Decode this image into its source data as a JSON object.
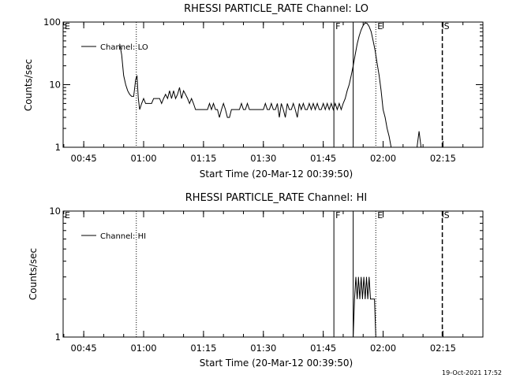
{
  "footer_timestamp": "19-Oct-2021 17:52",
  "chart_data": [
    {
      "type": "line",
      "title": "RHESSI PARTICLE_RATE Channel: LO",
      "xlabel": "Start Time (20-Mar-12 00:39:50)",
      "ylabel": "Counts/sec",
      "yscale": "log",
      "xlim": [
        "00:39:50",
        "02:25:00"
      ],
      "ylim": [
        1,
        100
      ],
      "x_ticks": [
        "00:45",
        "01:00",
        "01:15",
        "01:30",
        "01:45",
        "02:00",
        "02:15"
      ],
      "y_ticks": [
        "1",
        "10",
        "100"
      ],
      "legend": {
        "label": "Channel: LO",
        "position": "top-left"
      },
      "markers": [
        {
          "label": "E",
          "time": "00:39:50",
          "style": "none"
        },
        {
          "label": "",
          "time": "00:58:10",
          "style": "dotted"
        },
        {
          "label": "F",
          "time": "01:47:40",
          "style": "solid"
        },
        {
          "label": "",
          "time": "01:52:30",
          "style": "solid"
        },
        {
          "label": "E",
          "time": "01:58:10",
          "style": "dotted"
        },
        {
          "label": "S",
          "time": "02:14:50",
          "style": "dashed"
        }
      ],
      "series": [
        {
          "values": [
            [
              "00:54:00",
              45
            ],
            [
              "00:54:30",
              30
            ],
            [
              "00:55:00",
              14
            ],
            [
              "00:55:30",
              10
            ],
            [
              "00:56:00",
              8
            ],
            [
              "00:56:30",
              7
            ],
            [
              "00:57:00",
              6.5
            ],
            [
              "00:57:30",
              6.5
            ],
            [
              "00:58:00",
              12
            ],
            [
              "00:58:20",
              14
            ],
            [
              "00:58:40",
              6
            ],
            [
              "00:59:00",
              4
            ],
            [
              "00:59:30",
              5
            ],
            [
              "01:00:00",
              6
            ],
            [
              "01:00:30",
              5
            ],
            [
              "01:01:00",
              5
            ],
            [
              "01:02:00",
              5
            ],
            [
              "01:02:30",
              6
            ],
            [
              "01:03:30",
              6
            ],
            [
              "01:04:00",
              6
            ],
            [
              "01:04:30",
              5
            ],
            [
              "01:05:00",
              6
            ],
            [
              "01:05:30",
              7
            ],
            [
              "01:06:00",
              6
            ],
            [
              "01:06:30",
              8
            ],
            [
              "01:07:00",
              6
            ],
            [
              "01:07:30",
              8
            ],
            [
              "01:08:00",
              6
            ],
            [
              "01:08:30",
              7
            ],
            [
              "01:09:00",
              9
            ],
            [
              "01:09:30",
              6
            ],
            [
              "01:10:00",
              8
            ],
            [
              "01:10:30",
              7
            ],
            [
              "01:11:00",
              6
            ],
            [
              "01:11:30",
              5
            ],
            [
              "01:12:00",
              6
            ],
            [
              "01:12:30",
              5
            ],
            [
              "01:13:00",
              4
            ],
            [
              "01:13:30",
              4
            ],
            [
              "01:14:00",
              4
            ],
            [
              "01:14:30",
              4
            ],
            [
              "01:15:00",
              4
            ],
            [
              "01:16:00",
              4
            ],
            [
              "01:16:30",
              5
            ],
            [
              "01:17:00",
              4
            ],
            [
              "01:17:30",
              5
            ],
            [
              "01:18:00",
              4
            ],
            [
              "01:18:30",
              4
            ],
            [
              "01:19:00",
              3
            ],
            [
              "01:19:30",
              4
            ],
            [
              "01:20:00",
              5
            ],
            [
              "01:20:30",
              4
            ],
            [
              "01:21:00",
              3
            ],
            [
              "01:21:30",
              3
            ],
            [
              "01:22:00",
              4
            ],
            [
              "01:23:00",
              4
            ],
            [
              "01:24:00",
              4
            ],
            [
              "01:24:30",
              5
            ],
            [
              "01:25:00",
              4
            ],
            [
              "01:25:30",
              4
            ],
            [
              "01:26:00",
              5
            ],
            [
              "01:26:30",
              4
            ],
            [
              "01:27:00",
              4
            ],
            [
              "01:28:00",
              4
            ],
            [
              "01:29:00",
              4
            ],
            [
              "01:30:00",
              4
            ],
            [
              "01:30:30",
              5
            ],
            [
              "01:31:00",
              4
            ],
            [
              "01:31:30",
              4
            ],
            [
              "01:32:00",
              5
            ],
            [
              "01:32:30",
              4
            ],
            [
              "01:33:00",
              4
            ],
            [
              "01:33:30",
              5
            ],
            [
              "01:34:00",
              3
            ],
            [
              "01:34:30",
              5
            ],
            [
              "01:35:00",
              4
            ],
            [
              "01:35:30",
              3
            ],
            [
              "01:36:00",
              5
            ],
            [
              "01:36:30",
              4
            ],
            [
              "01:37:00",
              4
            ],
            [
              "01:37:30",
              5
            ],
            [
              "01:38:00",
              4
            ],
            [
              "01:38:30",
              3
            ],
            [
              "01:39:00",
              5
            ],
            [
              "01:39:30",
              4
            ],
            [
              "01:40:00",
              5
            ],
            [
              "01:40:30",
              4
            ],
            [
              "01:41:00",
              4
            ],
            [
              "01:41:30",
              5
            ],
            [
              "01:42:00",
              4
            ],
            [
              "01:42:30",
              5
            ],
            [
              "01:43:00",
              4
            ],
            [
              "01:43:30",
              5
            ],
            [
              "01:44:00",
              4
            ],
            [
              "01:44:30",
              4
            ],
            [
              "01:45:00",
              5
            ],
            [
              "01:45:30",
              4
            ],
            [
              "01:46:00",
              5
            ],
            [
              "01:46:30",
              4
            ],
            [
              "01:47:00",
              5
            ],
            [
              "01:47:30",
              4
            ],
            [
              "01:48:00",
              5
            ],
            [
              "01:48:30",
              4
            ],
            [
              "01:49:00",
              5
            ],
            [
              "01:49:30",
              4
            ],
            [
              "01:50:00",
              5
            ],
            [
              "01:50:30",
              6
            ],
            [
              "01:51:00",
              8
            ],
            [
              "01:51:30",
              10
            ],
            [
              "01:52:00",
              14
            ],
            [
              "01:52:30",
              20
            ],
            [
              "01:53:00",
              30
            ],
            [
              "01:53:30",
              45
            ],
            [
              "01:54:00",
              60
            ],
            [
              "01:54:30",
              75
            ],
            [
              "01:55:00",
              88
            ],
            [
              "01:55:30",
              97
            ],
            [
              "01:56:00",
              95
            ],
            [
              "01:56:30",
              85
            ],
            [
              "01:57:00",
              70
            ],
            [
              "01:57:30",
              50
            ],
            [
              "01:58:00",
              35
            ],
            [
              "01:58:30",
              22
            ],
            [
              "01:59:00",
              14
            ],
            [
              "01:59:30",
              8
            ],
            [
              "02:00:00",
              4
            ],
            [
              "02:00:30",
              3
            ],
            [
              "02:01:00",
              2
            ],
            [
              "02:01:30",
              1.5
            ],
            [
              "02:02:00",
              1
            ]
          ]
        },
        {
          "values": [
            [
              "02:08:30",
              1
            ],
            [
              "02:09:00",
              1.8
            ],
            [
              "02:09:30",
              1
            ]
          ]
        }
      ]
    },
    {
      "type": "line",
      "title": "RHESSI PARTICLE_RATE Channel: HI",
      "xlabel": "Start Time (20-Mar-12 00:39:50)",
      "ylabel": "Counts/sec",
      "yscale": "log",
      "xlim": [
        "00:39:50",
        "02:25:00"
      ],
      "ylim": [
        1,
        10
      ],
      "x_ticks": [
        "00:45",
        "01:00",
        "01:15",
        "01:30",
        "01:45",
        "02:00",
        "02:15"
      ],
      "y_ticks": [
        "1",
        "10"
      ],
      "legend": {
        "label": "Channel: HI",
        "position": "top-left"
      },
      "markers": [
        {
          "label": "E",
          "time": "00:39:50",
          "style": "none"
        },
        {
          "label": "",
          "time": "00:58:10",
          "style": "dotted"
        },
        {
          "label": "F",
          "time": "01:47:40",
          "style": "solid"
        },
        {
          "label": "",
          "time": "01:52:30",
          "style": "solid"
        },
        {
          "label": "E",
          "time": "01:58:10",
          "style": "dotted"
        },
        {
          "label": "S",
          "time": "02:14:50",
          "style": "dashed"
        }
      ],
      "series": [
        {
          "values": [
            [
              "01:52:30",
              1
            ],
            [
              "01:52:50",
              2
            ],
            [
              "01:53:10",
              3
            ],
            [
              "01:53:30",
              2
            ],
            [
              "01:53:50",
              3
            ],
            [
              "01:54:10",
              2
            ],
            [
              "01:54:30",
              3
            ],
            [
              "01:54:50",
              2
            ],
            [
              "01:55:10",
              3
            ],
            [
              "01:55:30",
              2
            ],
            [
              "01:55:50",
              3
            ],
            [
              "01:56:10",
              2
            ],
            [
              "01:56:30",
              3
            ],
            [
              "01:56:50",
              2
            ],
            [
              "01:57:10",
              2
            ],
            [
              "01:57:30",
              2
            ],
            [
              "01:57:50",
              2
            ],
            [
              "01:58:10",
              1
            ]
          ]
        }
      ]
    }
  ]
}
